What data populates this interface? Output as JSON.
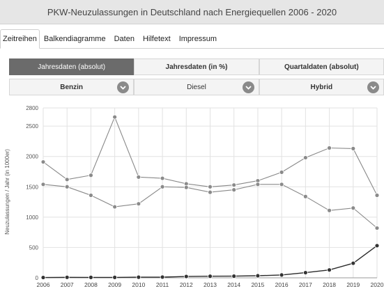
{
  "page": {
    "title": "PKW-Neuzulassungen in Deutschland nach Energiequellen 2006 - 2020"
  },
  "nav": {
    "tabs": [
      "Zeitreihen",
      "Balkendiagramme",
      "Daten",
      "Hilfetext",
      "Impressum"
    ]
  },
  "segments": [
    "Jahresdaten (absolut)",
    "Jahresdaten (in %)",
    "Quartaldaten (absolut)"
  ],
  "selectors": [
    "Benzin",
    "Diesel",
    "Hybrid"
  ],
  "chart_data": {
    "type": "line",
    "ylabel": "Neuzulassungen / Jahr (in 1000er)",
    "xlabel": "",
    "x": [
      "2006",
      "2007",
      "2008",
      "2009",
      "2010",
      "2011",
      "2012",
      "2013",
      "2014",
      "2015",
      "2016",
      "2017",
      "2018",
      "2019",
      "2020"
    ],
    "yticks": [
      0,
      500,
      1000,
      1500,
      2000,
      2500,
      2800
    ],
    "ylim": [
      0,
      2800
    ],
    "grid": true,
    "series": [
      {
        "values": [
          1910,
          1620,
          1690,
          2650,
          1660,
          1640,
          1550,
          1500,
          1530,
          1600,
          1740,
          1980,
          2140,
          2130,
          1360
        ]
      },
      {
        "values": [
          1540,
          1500,
          1360,
          1170,
          1220,
          1500,
          1490,
          1410,
          1450,
          1540,
          1540,
          1340,
          1110,
          1150,
          820
        ]
      },
      {
        "values": [
          5,
          8,
          7,
          7,
          10,
          12,
          22,
          26,
          27,
          34,
          47,
          85,
          130,
          240,
          530
        ]
      }
    ],
    "colors": {
      "line": "#888888",
      "marker": "#8a8a8a",
      "marker_dark": "#333333",
      "grid": "#e2e2e2"
    }
  }
}
